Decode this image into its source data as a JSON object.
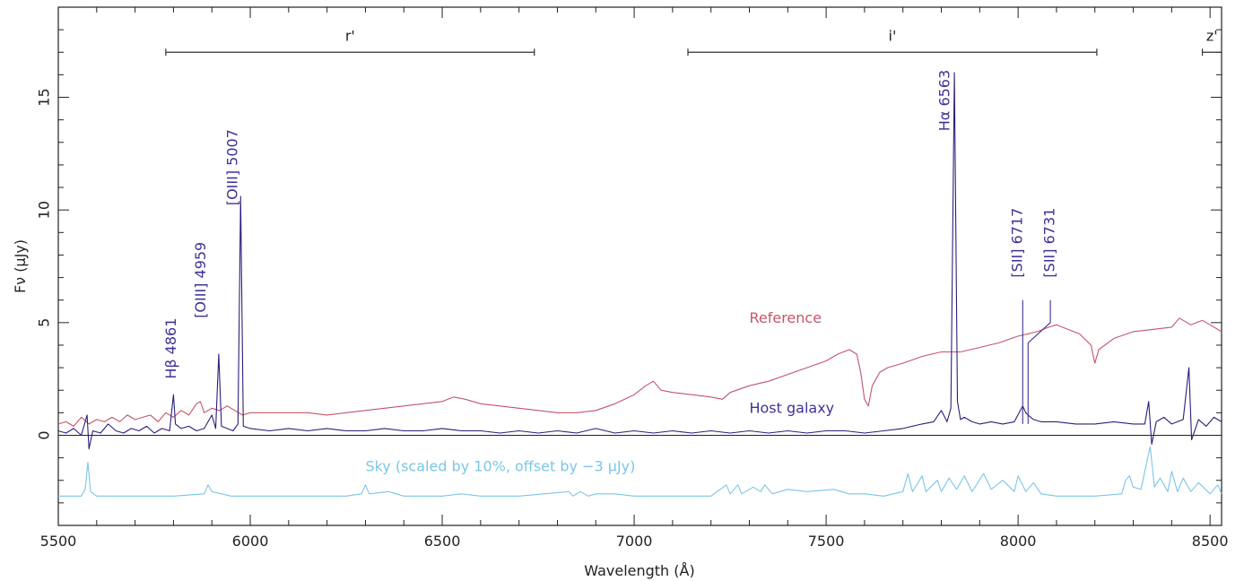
{
  "chart_data": {
    "type": "line",
    "xlabel": "Wavelength (Å)",
    "ylabel": "Fν (μJy)",
    "xlim": [
      5500,
      8530
    ],
    "ylim": [
      -4.0,
      19.0
    ],
    "x_ticks": [
      5500,
      6000,
      6500,
      7000,
      7500,
      8000,
      8500
    ],
    "y_ticks": [
      0,
      5,
      10,
      15
    ],
    "grid": false,
    "colors": {
      "host": "#2b1f7a",
      "reference": "#c4546a",
      "sky": "#7cc6e6",
      "annot": "#3d3398"
    },
    "bands": [
      {
        "label": "r'",
        "x0": 5780,
        "x1": 6740,
        "y": 17.0
      },
      {
        "label": "i'",
        "x0": 7140,
        "x1": 8205,
        "y": 17.0
      },
      {
        "label": "z'",
        "x0": 8480,
        "x1": 8530,
        "y": 17.0
      }
    ],
    "line_labels": [
      {
        "label": "Hβ 4861",
        "x": 5800,
        "y": 2.5,
        "text_x": 5795
      },
      {
        "label": "[OIII] 4959",
        "x": 5918,
        "y": 5.2,
        "text_x": 5873
      },
      {
        "label": "[OIII] 5007",
        "x": 5975,
        "y": 10.2,
        "text_x": 5956
      },
      {
        "label": "Hα 6563",
        "x": 7834,
        "y": 13.5,
        "text_x": 7810
      },
      {
        "label": "[SII] 6717",
        "x": 8012,
        "y": 7.0,
        "text_x": 8000
      },
      {
        "label": "[SII] 6731",
        "x": 8026,
        "y": 7.0,
        "text_x": 8084
      }
    ],
    "series_labels": {
      "reference": {
        "text": "Reference",
        "x": 7300,
        "y": 5.0
      },
      "host": {
        "text": "Host galaxy",
        "x": 7300,
        "y": 1.0
      },
      "sky": {
        "text": "Sky (scaled by 10%, offset by −3 μJy)",
        "x": 6300,
        "y": -1.6
      }
    },
    "series": [
      {
        "name": "Reference",
        "key": "reference",
        "points": [
          [
            5500,
            0.5
          ],
          [
            5520,
            0.6
          ],
          [
            5540,
            0.4
          ],
          [
            5560,
            0.8
          ],
          [
            5580,
            0.5
          ],
          [
            5600,
            0.7
          ],
          [
            5620,
            0.6
          ],
          [
            5640,
            0.8
          ],
          [
            5660,
            0.6
          ],
          [
            5680,
            0.9
          ],
          [
            5700,
            0.7
          ],
          [
            5720,
            0.8
          ],
          [
            5740,
            0.9
          ],
          [
            5760,
            0.6
          ],
          [
            5780,
            1.0
          ],
          [
            5800,
            0.8
          ],
          [
            5820,
            1.1
          ],
          [
            5840,
            0.9
          ],
          [
            5860,
            1.4
          ],
          [
            5870,
            1.5
          ],
          [
            5880,
            1.0
          ],
          [
            5900,
            1.2
          ],
          [
            5920,
            1.1
          ],
          [
            5940,
            1.3
          ],
          [
            5960,
            1.1
          ],
          [
            5980,
            0.9
          ],
          [
            6000,
            1.0
          ],
          [
            6050,
            1.0
          ],
          [
            6100,
            1.0
          ],
          [
            6150,
            1.0
          ],
          [
            6200,
            0.9
          ],
          [
            6250,
            1.0
          ],
          [
            6300,
            1.1
          ],
          [
            6350,
            1.2
          ],
          [
            6400,
            1.3
          ],
          [
            6450,
            1.4
          ],
          [
            6500,
            1.5
          ],
          [
            6530,
            1.7
          ],
          [
            6560,
            1.6
          ],
          [
            6600,
            1.4
          ],
          [
            6650,
            1.3
          ],
          [
            6700,
            1.2
          ],
          [
            6750,
            1.1
          ],
          [
            6800,
            1.0
          ],
          [
            6850,
            1.0
          ],
          [
            6900,
            1.1
          ],
          [
            6950,
            1.4
          ],
          [
            7000,
            1.8
          ],
          [
            7030,
            2.2
          ],
          [
            7050,
            2.4
          ],
          [
            7070,
            2.0
          ],
          [
            7100,
            1.9
          ],
          [
            7150,
            1.8
          ],
          [
            7200,
            1.7
          ],
          [
            7230,
            1.6
          ],
          [
            7250,
            1.9
          ],
          [
            7300,
            2.2
          ],
          [
            7350,
            2.4
          ],
          [
            7400,
            2.7
          ],
          [
            7450,
            3.0
          ],
          [
            7500,
            3.3
          ],
          [
            7530,
            3.6
          ],
          [
            7560,
            3.8
          ],
          [
            7580,
            3.6
          ],
          [
            7590,
            2.8
          ],
          [
            7600,
            1.6
          ],
          [
            7610,
            1.3
          ],
          [
            7620,
            2.2
          ],
          [
            7640,
            2.8
          ],
          [
            7660,
            3.0
          ],
          [
            7700,
            3.2
          ],
          [
            7750,
            3.5
          ],
          [
            7800,
            3.7
          ],
          [
            7850,
            3.7
          ],
          [
            7900,
            3.9
          ],
          [
            7950,
            4.1
          ],
          [
            8000,
            4.4
          ],
          [
            8050,
            4.6
          ],
          [
            8080,
            4.8
          ],
          [
            8100,
            4.9
          ],
          [
            8130,
            4.7
          ],
          [
            8160,
            4.5
          ],
          [
            8190,
            4.0
          ],
          [
            8200,
            3.2
          ],
          [
            8210,
            3.8
          ],
          [
            8250,
            4.3
          ],
          [
            8300,
            4.6
          ],
          [
            8350,
            4.7
          ],
          [
            8400,
            4.8
          ],
          [
            8420,
            5.2
          ],
          [
            8450,
            4.9
          ],
          [
            8480,
            5.1
          ],
          [
            8500,
            4.9
          ],
          [
            8530,
            4.6
          ]
        ]
      },
      {
        "name": "Host galaxy",
        "key": "host",
        "points": [
          [
            5500,
            0.2
          ],
          [
            5520,
            0.1
          ],
          [
            5540,
            0.3
          ],
          [
            5560,
            0.0
          ],
          [
            5575,
            0.9
          ],
          [
            5580,
            -0.6
          ],
          [
            5590,
            0.2
          ],
          [
            5610,
            0.1
          ],
          [
            5630,
            0.5
          ],
          [
            5650,
            0.2
          ],
          [
            5670,
            0.1
          ],
          [
            5690,
            0.3
          ],
          [
            5710,
            0.2
          ],
          [
            5730,
            0.4
          ],
          [
            5750,
            0.1
          ],
          [
            5770,
            0.3
          ],
          [
            5790,
            0.2
          ],
          [
            5800,
            1.8
          ],
          [
            5805,
            0.5
          ],
          [
            5820,
            0.3
          ],
          [
            5840,
            0.4
          ],
          [
            5860,
            0.2
          ],
          [
            5880,
            0.3
          ],
          [
            5900,
            0.9
          ],
          [
            5910,
            0.3
          ],
          [
            5918,
            3.6
          ],
          [
            5925,
            0.4
          ],
          [
            5940,
            0.3
          ],
          [
            5955,
            0.2
          ],
          [
            5968,
            0.5
          ],
          [
            5975,
            10.6
          ],
          [
            5982,
            0.4
          ],
          [
            6000,
            0.3
          ],
          [
            6050,
            0.2
          ],
          [
            6100,
            0.3
          ],
          [
            6150,
            0.2
          ],
          [
            6200,
            0.3
          ],
          [
            6250,
            0.2
          ],
          [
            6300,
            0.2
          ],
          [
            6350,
            0.3
          ],
          [
            6400,
            0.2
          ],
          [
            6450,
            0.2
          ],
          [
            6500,
            0.3
          ],
          [
            6550,
            0.2
          ],
          [
            6600,
            0.2
          ],
          [
            6650,
            0.1
          ],
          [
            6700,
            0.2
          ],
          [
            6750,
            0.1
          ],
          [
            6800,
            0.2
          ],
          [
            6850,
            0.1
          ],
          [
            6900,
            0.3
          ],
          [
            6950,
            0.1
          ],
          [
            7000,
            0.2
          ],
          [
            7050,
            0.1
          ],
          [
            7100,
            0.2
          ],
          [
            7150,
            0.1
          ],
          [
            7200,
            0.2
          ],
          [
            7250,
            0.1
          ],
          [
            7300,
            0.2
          ],
          [
            7350,
            0.1
          ],
          [
            7400,
            0.2
          ],
          [
            7450,
            0.1
          ],
          [
            7500,
            0.2
          ],
          [
            7550,
            0.2
          ],
          [
            7600,
            0.1
          ],
          [
            7650,
            0.2
          ],
          [
            7700,
            0.3
          ],
          [
            7750,
            0.5
          ],
          [
            7780,
            0.6
          ],
          [
            7800,
            1.1
          ],
          [
            7815,
            0.6
          ],
          [
            7825,
            1.2
          ],
          [
            7834,
            16.1
          ],
          [
            7842,
            1.5
          ],
          [
            7850,
            0.7
          ],
          [
            7860,
            0.8
          ],
          [
            7880,
            0.6
          ],
          [
            7900,
            0.5
          ],
          [
            7930,
            0.6
          ],
          [
            7960,
            0.5
          ],
          [
            7990,
            0.6
          ],
          [
            8012,
            1.3
          ],
          [
            8020,
            1.0
          ],
          [
            8026,
            0.9
          ],
          [
            8040,
            0.7
          ],
          [
            8060,
            0.6
          ],
          [
            8100,
            0.6
          ],
          [
            8150,
            0.5
          ],
          [
            8200,
            0.5
          ],
          [
            8250,
            0.6
          ],
          [
            8300,
            0.5
          ],
          [
            8330,
            0.5
          ],
          [
            8340,
            1.5
          ],
          [
            8348,
            -0.4
          ],
          [
            8360,
            0.6
          ],
          [
            8380,
            0.8
          ],
          [
            8400,
            0.5
          ],
          [
            8430,
            0.7
          ],
          [
            8445,
            3.0
          ],
          [
            8452,
            -0.2
          ],
          [
            8470,
            0.7
          ],
          [
            8490,
            0.4
          ],
          [
            8510,
            0.8
          ],
          [
            8530,
            0.6
          ]
        ]
      },
      {
        "name": "Sky",
        "key": "sky",
        "points": [
          [
            5500,
            -2.7
          ],
          [
            5560,
            -2.7
          ],
          [
            5570,
            -2.4
          ],
          [
            5577,
            -1.2
          ],
          [
            5584,
            -2.5
          ],
          [
            5600,
            -2.7
          ],
          [
            5700,
            -2.7
          ],
          [
            5800,
            -2.7
          ],
          [
            5880,
            -2.6
          ],
          [
            5890,
            -2.2
          ],
          [
            5900,
            -2.5
          ],
          [
            5950,
            -2.7
          ],
          [
            6050,
            -2.7
          ],
          [
            6150,
            -2.7
          ],
          [
            6250,
            -2.7
          ],
          [
            6290,
            -2.6
          ],
          [
            6300,
            -2.2
          ],
          [
            6310,
            -2.6
          ],
          [
            6360,
            -2.5
          ],
          [
            6400,
            -2.7
          ],
          [
            6500,
            -2.7
          ],
          [
            6550,
            -2.6
          ],
          [
            6600,
            -2.7
          ],
          [
            6700,
            -2.7
          ],
          [
            6830,
            -2.5
          ],
          [
            6840,
            -2.7
          ],
          [
            6860,
            -2.5
          ],
          [
            6880,
            -2.7
          ],
          [
            6900,
            -2.6
          ],
          [
            6950,
            -2.6
          ],
          [
            7000,
            -2.7
          ],
          [
            7100,
            -2.7
          ],
          [
            7200,
            -2.7
          ],
          [
            7240,
            -2.2
          ],
          [
            7250,
            -2.6
          ],
          [
            7270,
            -2.2
          ],
          [
            7280,
            -2.6
          ],
          [
            7310,
            -2.3
          ],
          [
            7330,
            -2.5
          ],
          [
            7340,
            -2.2
          ],
          [
            7360,
            -2.6
          ],
          [
            7400,
            -2.4
          ],
          [
            7450,
            -2.5
          ],
          [
            7520,
            -2.4
          ],
          [
            7560,
            -2.6
          ],
          [
            7600,
            -2.6
          ],
          [
            7650,
            -2.7
          ],
          [
            7700,
            -2.5
          ],
          [
            7713,
            -1.7
          ],
          [
            7725,
            -2.5
          ],
          [
            7750,
            -1.8
          ],
          [
            7760,
            -2.5
          ],
          [
            7790,
            -2.0
          ],
          [
            7800,
            -2.5
          ],
          [
            7820,
            -1.9
          ],
          [
            7840,
            -2.4
          ],
          [
            7860,
            -1.8
          ],
          [
            7880,
            -2.5
          ],
          [
            7910,
            -1.7
          ],
          [
            7930,
            -2.4
          ],
          [
            7960,
            -2.0
          ],
          [
            7990,
            -2.5
          ],
          [
            8000,
            -1.8
          ],
          [
            8020,
            -2.5
          ],
          [
            8040,
            -2.1
          ],
          [
            8060,
            -2.6
          ],
          [
            8100,
            -2.7
          ],
          [
            8200,
            -2.7
          ],
          [
            8270,
            -2.6
          ],
          [
            8280,
            -2.0
          ],
          [
            8290,
            -1.8
          ],
          [
            8300,
            -2.3
          ],
          [
            8320,
            -2.4
          ],
          [
            8344,
            -0.5
          ],
          [
            8355,
            -2.3
          ],
          [
            8370,
            -1.9
          ],
          [
            8390,
            -2.5
          ],
          [
            8400,
            -1.6
          ],
          [
            8415,
            -2.5
          ],
          [
            8430,
            -1.9
          ],
          [
            8450,
            -2.5
          ],
          [
            8470,
            -2.1
          ],
          [
            8500,
            -2.6
          ],
          [
            8520,
            -2.2
          ],
          [
            8530,
            -2.6
          ]
        ]
      }
    ]
  }
}
